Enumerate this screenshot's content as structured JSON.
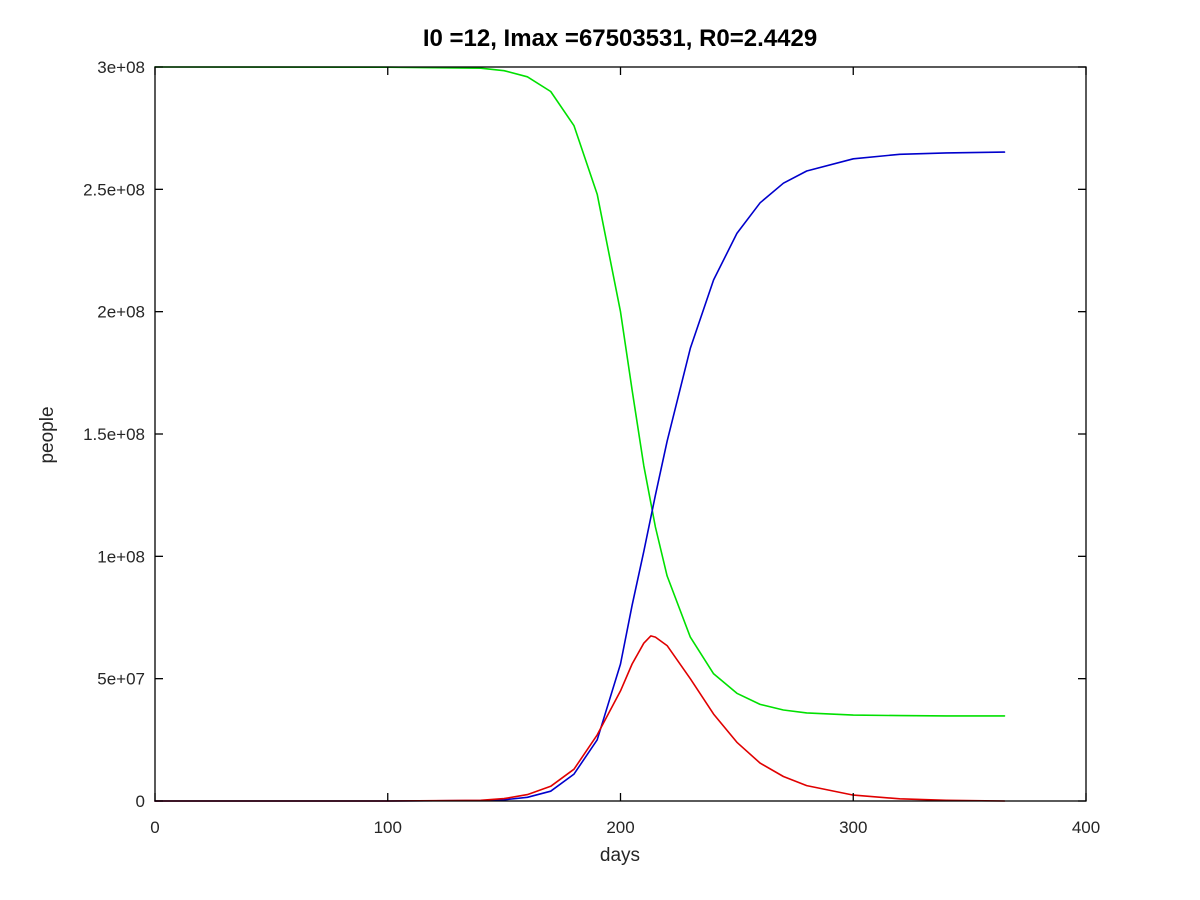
{
  "chart_data": {
    "type": "line",
    "title": "I0 =12, Imax =67503531, R0=2.4429",
    "xlabel": "days",
    "ylabel": "people",
    "xlim": [
      0,
      400
    ],
    "ylim": [
      0,
      300000000
    ],
    "xticks": [
      0,
      100,
      200,
      300,
      400
    ],
    "xtick_labels": [
      "0",
      "100",
      "200",
      "300",
      "400"
    ],
    "yticks": [
      0,
      50000000,
      100000000,
      150000000,
      200000000,
      250000000,
      300000000
    ],
    "ytick_labels": [
      "0",
      "5e+07",
      "1e+08",
      "1.5e+08",
      "2e+08",
      "2.5e+08",
      "3e+08"
    ],
    "grid": false,
    "series": [
      {
        "color": "#00e000",
        "points": [
          [
            0,
            300000000
          ],
          [
            100,
            299900000
          ],
          [
            140,
            299500000
          ],
          [
            150,
            298500000
          ],
          [
            160,
            296000000
          ],
          [
            170,
            290000000
          ],
          [
            180,
            276000000
          ],
          [
            190,
            248000000
          ],
          [
            200,
            200000000
          ],
          [
            205,
            168000000
          ],
          [
            210,
            137000000
          ],
          [
            215,
            112000000
          ],
          [
            220,
            92000000
          ],
          [
            230,
            67000000
          ],
          [
            240,
            52000000
          ],
          [
            250,
            44000000
          ],
          [
            260,
            39500000
          ],
          [
            270,
            37200000
          ],
          [
            280,
            36000000
          ],
          [
            300,
            35100000
          ],
          [
            320,
            34900000
          ],
          [
            340,
            34800000
          ],
          [
            365,
            34800000
          ]
        ]
      },
      {
        "color": "#0000cc",
        "points": [
          [
            0,
            0
          ],
          [
            100,
            0
          ],
          [
            140,
            200000
          ],
          [
            150,
            500000
          ],
          [
            160,
            1500000
          ],
          [
            170,
            4000000
          ],
          [
            180,
            11000000
          ],
          [
            190,
            25000000
          ],
          [
            200,
            56000000
          ],
          [
            205,
            80000000
          ],
          [
            210,
            102000000
          ],
          [
            215,
            125000000
          ],
          [
            220,
            147000000
          ],
          [
            230,
            185000000
          ],
          [
            240,
            213000000
          ],
          [
            250,
            232000000
          ],
          [
            260,
            244500000
          ],
          [
            270,
            252500000
          ],
          [
            280,
            257500000
          ],
          [
            300,
            262500000
          ],
          [
            320,
            264300000
          ],
          [
            340,
            264900000
          ],
          [
            365,
            265200000
          ]
        ]
      },
      {
        "color": "#e00000",
        "points": [
          [
            0,
            0
          ],
          [
            100,
            0
          ],
          [
            140,
            300000
          ],
          [
            150,
            1000000
          ],
          [
            160,
            2600000
          ],
          [
            170,
            6000000
          ],
          [
            180,
            13000000
          ],
          [
            190,
            27000000
          ],
          [
            200,
            45000000
          ],
          [
            205,
            56000000
          ],
          [
            210,
            64500000
          ],
          [
            213,
            67500000
          ],
          [
            215,
            67000000
          ],
          [
            220,
            63500000
          ],
          [
            230,
            50000000
          ],
          [
            240,
            35500000
          ],
          [
            250,
            24000000
          ],
          [
            260,
            15500000
          ],
          [
            270,
            10000000
          ],
          [
            280,
            6300000
          ],
          [
            300,
            2400000
          ],
          [
            320,
            900000
          ],
          [
            340,
            300000
          ],
          [
            365,
            0
          ]
        ]
      }
    ]
  }
}
